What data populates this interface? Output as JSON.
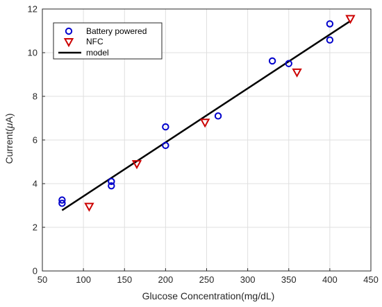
{
  "chart_data": {
    "type": "scatter",
    "xlabel": "Glucose Concentration(mg/dL)",
    "ylabel_prefix": "Current(",
    "ylabel_mu": "μ",
    "ylabel_suffix": "A)",
    "xlim": [
      50,
      450
    ],
    "ylim": [
      0,
      12
    ],
    "xticks": [
      50,
      100,
      150,
      200,
      250,
      300,
      350,
      400,
      450
    ],
    "yticks": [
      0,
      2,
      4,
      6,
      8,
      10,
      12
    ],
    "grid": true,
    "legend_position": "top-left",
    "series": [
      {
        "name": "Battery powered",
        "marker": "circle",
        "color": "#0000cc",
        "x": [
          74,
          74,
          134,
          134,
          200,
          200,
          264,
          330,
          350,
          400,
          400
        ],
        "y": [
          3.25,
          3.1,
          4.1,
          3.9,
          6.6,
          5.75,
          7.1,
          9.62,
          9.5,
          11.32,
          10.58
        ]
      },
      {
        "name": "NFC",
        "marker": "triangle-down",
        "color": "#cc0000",
        "x": [
          107,
          165,
          248,
          360,
          425
        ],
        "y": [
          2.95,
          4.9,
          6.8,
          9.1,
          11.55
        ]
      },
      {
        "name": "model",
        "marker": "line",
        "color": "#000000",
        "x": [
          74,
          425
        ],
        "y": [
          2.78,
          11.45
        ]
      }
    ]
  }
}
